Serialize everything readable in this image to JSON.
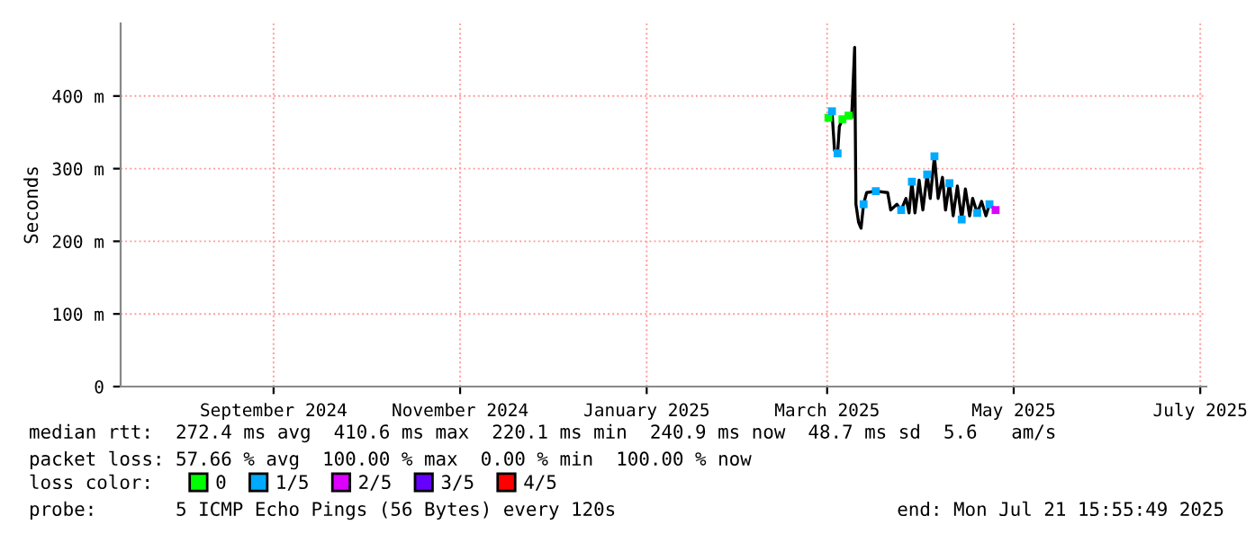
{
  "chart_data": {
    "type": "line",
    "ylabel": "Seconds",
    "x": [
      "2025-03-01T10:00",
      "2025-03-02T14:00",
      "2025-03-03T10:00",
      "2025-03-04T10:00",
      "2025-03-05",
      "2025-03-06",
      "2025-03-08",
      "2025-03-09",
      "2025-03-09T10:00",
      "2025-03-10",
      "2025-03-10T10:00",
      "2025-03-11T07:00",
      "2025-03-12T02:00",
      "2025-03-12T22:00",
      "2025-03-13T22:00",
      "2025-03-16T22:00",
      "2025-03-20T19:00",
      "2025-03-21T19:00",
      "2025-03-23T19:00",
      "2025-03-25T05:00",
      "2025-03-26T19:00",
      "2025-03-27T19:00",
      "2025-03-28T17:00",
      "2025-03-29T17:00",
      "2025-03-31T02:00",
      "2025-04-01T07:00",
      "2025-04-02T17:00",
      "2025-04-03T17:00",
      "2025-04-05T02:00",
      "2025-04-06T07:00",
      "2025-04-07T17:00",
      "2025-04-08T17:00",
      "2025-04-10",
      "2025-04-11T05:00",
      "2025-04-12T14:00",
      "2025-04-14",
      "2025-04-15T05:00",
      "2025-04-16T14:00",
      "2025-04-17T14:00",
      "2025-04-19T02:00",
      "2025-04-20T12:00",
      "2025-04-21T22:00",
      "2025-04-23T02:00",
      "2025-04-25T02:00"
    ],
    "series": [
      {
        "color": "#000000",
        "values": [
          370,
          379,
          325,
          321,
          358,
          368,
          373,
          370,
          409,
          467,
          251,
          226,
          218,
          251,
          267,
          269,
          267,
          243,
          251,
          243,
          259,
          239,
          282,
          239,
          284,
          243,
          292,
          259,
          317,
          259,
          288,
          243,
          280,
          235,
          276,
          230,
          272,
          235,
          259,
          239,
          255,
          235,
          251,
          243
        ]
      },
      {
        "name": "0",
        "type": "scatter",
        "color": "#00ff00",
        "x": [
          "2025-03-01T10:00",
          "2025-03-06",
          "2025-03-08"
        ],
        "values": [
          370,
          368,
          373
        ]
      },
      {
        "name": "1/5",
        "type": "scatter",
        "color": "#00aaff",
        "x": [
          "2025-03-02T14:00",
          "2025-03-04T10:00",
          "2025-03-12T22:00",
          "2025-03-16T22:00",
          "2025-03-25T05:00",
          "2025-03-28T17:00",
          "2025-04-02T17:00",
          "2025-04-05T02:00",
          "2025-04-10",
          "2025-04-14",
          "2025-04-19T02:00",
          "2025-04-23T02:00"
        ],
        "values": [
          379,
          321,
          251,
          269,
          243,
          282,
          292,
          317,
          280,
          230,
          239,
          251
        ]
      },
      {
        "name": "2/5",
        "type": "scatter",
        "color": "#dd00ff",
        "x": [
          "2025-04-25T02:00"
        ],
        "values": [
          243
        ]
      },
      {
        "name": "3/5",
        "type": "scatter",
        "color": "#6600ff",
        "values": [
          null,
          null,
          null,
          null,
          null,
          null,
          null,
          null,
          null,
          null,
          null,
          null,
          null,
          null,
          null,
          null,
          null,
          null,
          null,
          null,
          null,
          null,
          null,
          null,
          null,
          null,
          null,
          null,
          null,
          null,
          null,
          null,
          null,
          null,
          null,
          null,
          null,
          null,
          null,
          null,
          null,
          null,
          null,
          null
        ]
      },
      {
        "name": "4/5",
        "type": "scatter",
        "color": "#ff0000",
        "values": [
          null,
          null,
          null,
          null,
          null,
          null,
          null,
          null,
          null,
          null,
          null,
          null,
          null,
          null,
          null,
          null,
          null,
          null,
          null,
          null,
          null,
          null,
          null,
          null,
          null,
          null,
          null,
          null,
          null,
          null,
          null,
          null,
          null,
          null,
          null,
          null,
          null,
          null,
          null,
          null,
          null,
          null,
          null,
          null
        ]
      }
    ],
    "xlim": [
      "2024-07-13",
      "2025-07-03"
    ],
    "xticks": [
      {
        "value": "2024-09-01",
        "label": "September 2024"
      },
      {
        "value": "2024-11-01",
        "label": "November 2024"
      },
      {
        "value": "2025-01-01",
        "label": "January 2025"
      },
      {
        "value": "2025-03-01",
        "label": "March 2025"
      },
      {
        "value": "2025-05-01",
        "label": "May 2025"
      },
      {
        "value": "2025-07-01",
        "label": "July 2025"
      }
    ],
    "ylim": [
      0,
      500
    ],
    "yticks": [
      0,
      {
        "value": 100,
        "label": "100 m"
      },
      {
        "value": 200,
        "label": "200 m"
      },
      {
        "value": 300,
        "label": "300 m"
      },
      {
        "value": 400,
        "label": "400 m"
      }
    ],
    "grid": true,
    "legend": "bottom left",
    "annotations": [
      "median rtt:  272.4 ms avg  410.6 ms max  220.1 ms min  240.9 ms now  48.7 ms sd  5.6   am/s",
      "packet loss: 57.66 % avg  100.00 % max  0.00 % min  100.00 % now",
      "loss color:",
      "probe:       5 ICMP Echo Pings (56 Bytes) every 120s",
      "end: Mon Jul 21 15:55:49 2025"
    ]
  }
}
